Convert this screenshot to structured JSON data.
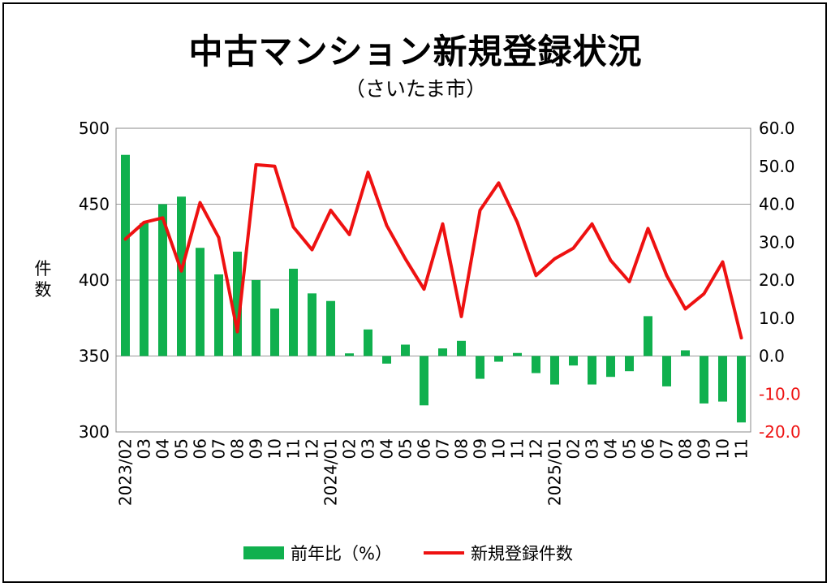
{
  "title": "中古マンション新規登録状況",
  "subtitle": "（さいたま市）",
  "colors": {
    "bar": "#10b04e",
    "line": "#ee1111",
    "right_axis_negative": "#ee1111"
  },
  "chart_data": {
    "type": "bar+line",
    "ylabel_chars": [
      "件",
      "数"
    ],
    "left_axis": {
      "ylim": [
        300,
        500
      ],
      "ticks": [
        "500",
        "450",
        "400",
        "350",
        "300"
      ]
    },
    "right_axis": {
      "ylim": [
        -20,
        60
      ],
      "ticks": [
        "60.0",
        "50.0",
        "40.0",
        "30.0",
        "20.0",
        "10.0",
        "0.0",
        "-10.0",
        "-20.0"
      ]
    },
    "x_tick_labels": [
      "2023/02",
      "03",
      "04",
      "05",
      "06",
      "07",
      "08",
      "09",
      "10",
      "11",
      "12",
      "2024/01",
      "02",
      "03",
      "04",
      "05",
      "06",
      "07",
      "08",
      "09",
      "10",
      "11",
      "12",
      "2025/01",
      "02",
      "03",
      "04",
      "05",
      "06",
      "07",
      "08",
      "09",
      "10",
      "11"
    ],
    "series": [
      {
        "name": "前年比(%)",
        "type": "bar",
        "axis": "right",
        "values": [
          53.0,
          35.0,
          40.0,
          42.0,
          28.5,
          21.5,
          27.5,
          20.0,
          12.5,
          23.0,
          16.5,
          14.5,
          0.7,
          7.0,
          -2.0,
          3.0,
          -13.0,
          2.0,
          4.0,
          -6.0,
          -1.5,
          0.8,
          -4.5,
          -7.5,
          -2.5,
          -7.5,
          -5.5,
          -4.0,
          10.5,
          -8.0,
          1.5,
          -12.5,
          -12.0,
          -17.5
        ]
      },
      {
        "name": "新規登録件数",
        "type": "line",
        "axis": "left",
        "values": [
          427,
          438,
          441,
          406,
          451,
          428,
          366,
          476,
          475,
          435,
          420,
          446,
          430,
          471,
          436,
          414,
          394,
          437,
          376,
          446,
          464,
          438,
          403,
          414,
          421,
          437,
          413,
          399,
          434,
          403,
          381,
          391,
          412,
          362
        ]
      }
    ],
    "legend": {
      "position": "bottom",
      "items": [
        "前年比（%）",
        "新規登録件数"
      ]
    },
    "grid": true
  }
}
